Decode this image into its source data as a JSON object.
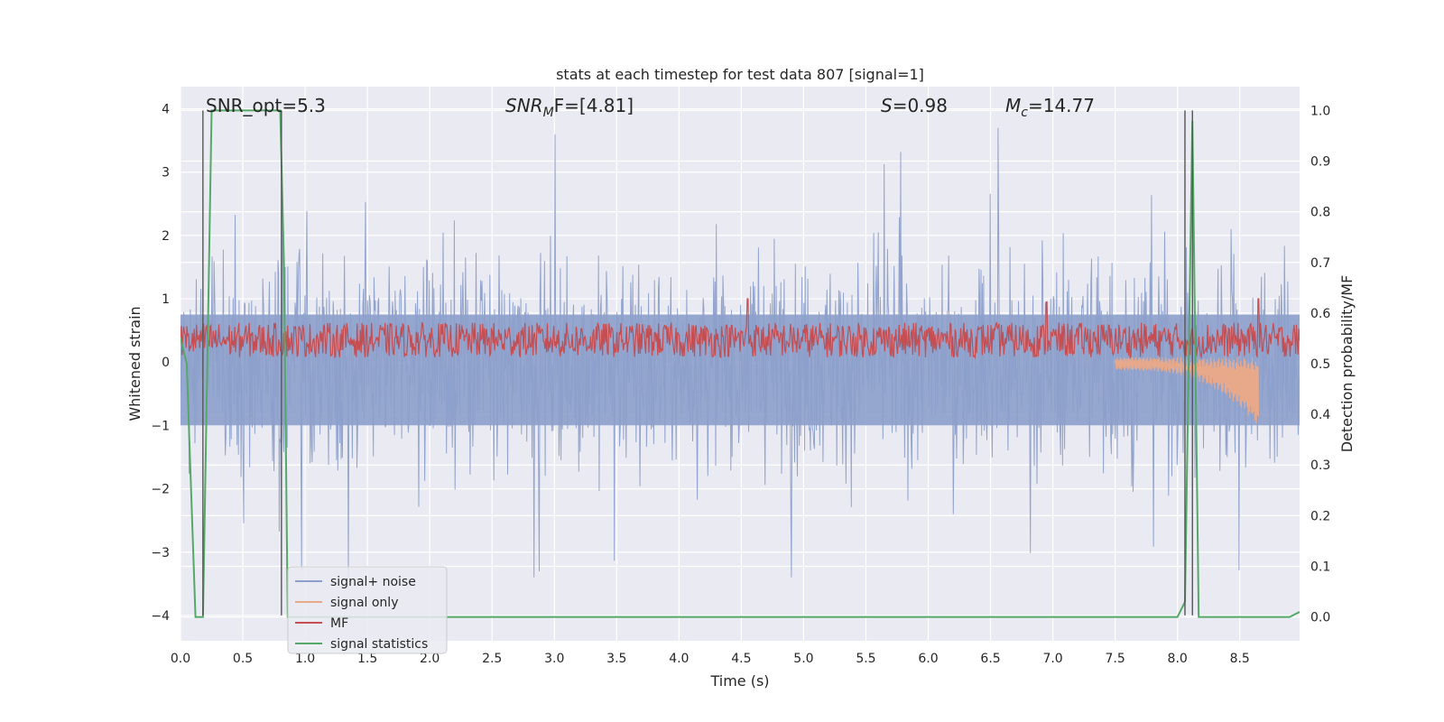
{
  "chart_data": {
    "type": "line",
    "title": "stats at each timestep for test data 807 [signal=1]",
    "xlabel": "Time (s)",
    "ylabel_left": "Whitened strain",
    "ylabel_right": "Detection probability/MF",
    "xlim": [
      0.0,
      8.98
    ],
    "ylim_left": [
      -4.4,
      4.35
    ],
    "ylim_right": [
      -0.047,
      1.047
    ],
    "xticks": [
      "0.0",
      "0.5",
      "1.0",
      "1.5",
      "2.0",
      "2.5",
      "3.0",
      "3.5",
      "4.0",
      "4.5",
      "5.0",
      "5.5",
      "6.0",
      "6.5",
      "7.0",
      "7.5",
      "8.0",
      "8.5"
    ],
    "xtick_values": [
      0.0,
      0.5,
      1.0,
      1.5,
      2.0,
      2.5,
      3.0,
      3.5,
      4.0,
      4.5,
      5.0,
      5.5,
      6.0,
      6.5,
      7.0,
      7.5,
      8.0,
      8.5
    ],
    "yticks_left": [
      "−4",
      "−3",
      "−2",
      "−1",
      "0",
      "1",
      "2",
      "3",
      "4"
    ],
    "ytick_values_left": [
      -4,
      -3,
      -2,
      -1,
      0,
      1,
      2,
      3,
      4
    ],
    "yticks_right": [
      "0.0",
      "0.1",
      "0.2",
      "0.3",
      "0.4",
      "0.5",
      "0.6",
      "0.7",
      "0.8",
      "0.9",
      "1.0"
    ],
    "ytick_values_right": [
      0.0,
      0.1,
      0.2,
      0.3,
      0.4,
      0.5,
      0.6,
      0.7,
      0.8,
      0.9,
      1.0
    ],
    "grid": true,
    "legend_position": "lower-left",
    "annotations": {
      "snr_opt": "SNR_opt=5.3",
      "snr_mf_base": "SNR",
      "snr_mf_sub": "M",
      "snr_mf_rest": "F=[4.81]",
      "s_sym": "S",
      "s_val": "=0.98",
      "mc_base": "M",
      "mc_sub": "c",
      "mc_val": "=14.77"
    },
    "series": [
      {
        "name": "signal+ noise",
        "color": "#8da0cb",
        "axis": "left",
        "description_range": [
          -3.4,
          3.7
        ]
      },
      {
        "name": "signal only",
        "color": "#e8a88a",
        "axis": "left",
        "points": [
          [
            7.5,
            0.0
          ],
          [
            7.8,
            -0.1
          ],
          [
            8.0,
            -0.2
          ],
          [
            8.2,
            -0.35
          ],
          [
            8.4,
            -0.5
          ],
          [
            8.55,
            -0.7
          ],
          [
            8.63,
            -1.0
          ],
          [
            8.65,
            0.0
          ]
        ]
      },
      {
        "name": "MF",
        "color": "#c44e52",
        "axis": "left",
        "baseline": 0.35,
        "peaks": [
          [
            4.55,
            1.0
          ],
          [
            6.95,
            0.95
          ],
          [
            8.65,
            1.0
          ]
        ]
      },
      {
        "name": "signal statistics",
        "color": "#55a868",
        "axis": "right",
        "points": [
          [
            0.0,
            0.55
          ],
          [
            0.05,
            0.5
          ],
          [
            0.12,
            0.0
          ],
          [
            0.18,
            0.0
          ],
          [
            0.25,
            1.0
          ],
          [
            0.8,
            1.0
          ],
          [
            0.83,
            0.7
          ],
          [
            0.86,
            0.0
          ],
          [
            8.0,
            0.0
          ],
          [
            8.06,
            0.03
          ],
          [
            8.12,
            0.98
          ],
          [
            8.17,
            0.0
          ],
          [
            8.9,
            0.0
          ],
          [
            8.98,
            0.01
          ]
        ]
      }
    ],
    "vertical_markers": [
      0.18,
      0.81,
      8.06,
      8.12
    ]
  }
}
